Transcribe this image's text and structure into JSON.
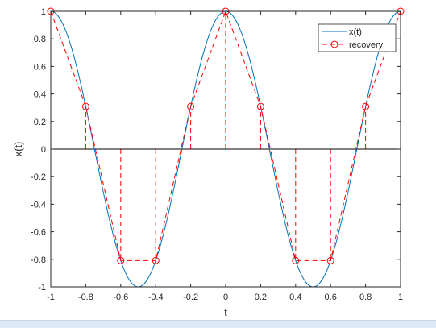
{
  "chart_data": {
    "type": "line",
    "title": "",
    "xlabel": "t",
    "ylabel": "x(t)",
    "xlim": [
      -1,
      1
    ],
    "ylim": [
      -1,
      1
    ],
    "xticks": [
      -1,
      -0.8,
      -0.6,
      -0.4,
      -0.2,
      0,
      0.2,
      0.4,
      0.6,
      0.8,
      1
    ],
    "xtick_labels": [
      "-1",
      "-0.8",
      "-0.6",
      "-0.4",
      "-0.2",
      "0",
      "0.2",
      "0.4",
      "0.6",
      "0.8",
      "1"
    ],
    "yticks": [
      -1,
      -0.8,
      -0.6,
      -0.4,
      -0.2,
      0,
      0.2,
      0.4,
      0.6,
      0.8,
      1
    ],
    "ytick_labels": [
      "-1",
      "-0.8",
      "-0.6",
      "-0.4",
      "-0.2",
      "0",
      "0.2",
      "0.4",
      "0.6",
      "0.8",
      "1"
    ],
    "grid": false,
    "legend_position": "top-right",
    "series": [
      {
        "name": "x(t)",
        "style": "solid-line",
        "color": "#0072bd",
        "function": "cos(2*pi*t)"
      },
      {
        "name": "recovery",
        "style": "dashed-line-circle-markers",
        "color": "#ff0000",
        "x": [
          -1,
          -0.8,
          -0.6,
          -0.4,
          -0.2,
          0,
          0.2,
          0.4,
          0.6,
          0.8,
          1
        ],
        "y": [
          1,
          0.309,
          -0.809,
          -0.809,
          0.309,
          1,
          0.309,
          -0.809,
          -0.809,
          0.309,
          1
        ]
      }
    ]
  }
}
